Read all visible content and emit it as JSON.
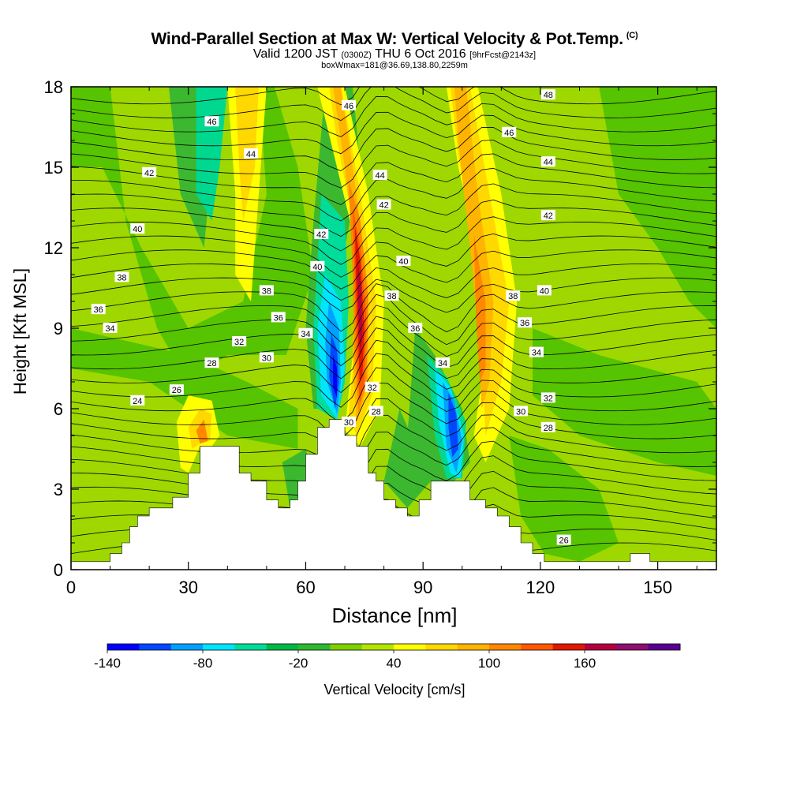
{
  "titles": {
    "main": "Wind-Parallel Section at Max W: Vertical Velocity & Pot.Temp.",
    "copyright": "(C)",
    "valid_pre": "Valid 1200 JST",
    "valid_utc": "(0300Z)",
    "valid_post": "THU 6 Oct 2016",
    "forecast": "[9hrFcst@2143z]",
    "box": "boxWmax=181@36.69,138.80,2259m"
  },
  "chart_data": {
    "type": "heatmap",
    "title": "Wind-Parallel Section at Max W: Vertical Velocity & Pot.Temp.",
    "xlabel": "Distance [nm]",
    "ylabel": "Height [Kft MSL]",
    "xlim": [
      0,
      165
    ],
    "ylim": [
      0,
      18
    ],
    "x_ticks": [
      0,
      30,
      60,
      90,
      120,
      150
    ],
    "y_ticks": [
      0,
      3,
      6,
      9,
      12,
      15,
      18
    ],
    "grid": false,
    "colorbar": {
      "label": "Vertical Velocity [cm/s]",
      "tick_labels": [
        "-140",
        "-80",
        "-20",
        "40",
        "100",
        "160"
      ],
      "colors": [
        "#0000ff",
        "#0048ff",
        "#00a0ff",
        "#00e4ff",
        "#00dc9a",
        "#00b848",
        "#30b830",
        "#7ed000",
        "#b4e400",
        "#ffff00",
        "#ffd800",
        "#ffb400",
        "#ff8800",
        "#ff5800",
        "#e01800",
        "#b40040",
        "#8c1070",
        "#5a0090"
      ]
    },
    "velocity_features": [
      {
        "x": 73,
        "y": 11.0,
        "w": 160,
        "kind": "updraft-core"
      },
      {
        "x": 68,
        "y": 7.5,
        "w": -130,
        "kind": "downdraft-core"
      },
      {
        "x": 98,
        "y": 5.8,
        "w": -110,
        "kind": "downdraft-core"
      },
      {
        "x": 104,
        "y": 9.5,
        "w": 70,
        "kind": "updraft"
      },
      {
        "x": 46,
        "y": 15.5,
        "w": 50,
        "kind": "updraft"
      },
      {
        "x": 100,
        "y": 15.0,
        "w": 60,
        "kind": "updraft"
      },
      {
        "x": 33,
        "y": 5.0,
        "w": 60,
        "kind": "updraft"
      },
      {
        "x": 34,
        "y": 16.0,
        "w": -60,
        "kind": "downdraft"
      }
    ],
    "theta_labels": [
      {
        "text": "24",
        "x": 17,
        "y": 6.3
      },
      {
        "text": "26",
        "x": 27,
        "y": 6.7
      },
      {
        "text": "28",
        "x": 36,
        "y": 7.7
      },
      {
        "text": "30",
        "x": 50,
        "y": 7.9
      },
      {
        "text": "32",
        "x": 43,
        "y": 8.5
      },
      {
        "text": "34",
        "x": 10,
        "y": 9.0
      },
      {
        "text": "34",
        "x": 60,
        "y": 8.8
      },
      {
        "text": "36",
        "x": 7,
        "y": 9.7
      },
      {
        "text": "36",
        "x": 53,
        "y": 9.4
      },
      {
        "text": "38",
        "x": 13,
        "y": 10.9
      },
      {
        "text": "38",
        "x": 50,
        "y": 10.4
      },
      {
        "text": "40",
        "x": 17,
        "y": 12.7
      },
      {
        "text": "40",
        "x": 63,
        "y": 11.3
      },
      {
        "text": "42",
        "x": 20,
        "y": 14.8
      },
      {
        "text": "42",
        "x": 64,
        "y": 12.5
      },
      {
        "text": "44",
        "x": 46,
        "y": 15.5
      },
      {
        "text": "46",
        "x": 36,
        "y": 16.7
      },
      {
        "text": "46",
        "x": 71,
        "y": 17.3
      },
      {
        "text": "44",
        "x": 79,
        "y": 14.7
      },
      {
        "text": "42",
        "x": 80,
        "y": 13.6
      },
      {
        "text": "40",
        "x": 85,
        "y": 11.5
      },
      {
        "text": "38",
        "x": 82,
        "y": 10.2
      },
      {
        "text": "36",
        "x": 88,
        "y": 9.0
      },
      {
        "text": "34",
        "x": 95,
        "y": 7.7
      },
      {
        "text": "32",
        "x": 77,
        "y": 6.8
      },
      {
        "text": "30",
        "x": 71,
        "y": 5.5
      },
      {
        "text": "28",
        "x": 78,
        "y": 5.9
      },
      {
        "text": "48",
        "x": 122,
        "y": 17.7
      },
      {
        "text": "46",
        "x": 112,
        "y": 16.3
      },
      {
        "text": "44",
        "x": 122,
        "y": 15.2
      },
      {
        "text": "42",
        "x": 122,
        "y": 13.2
      },
      {
        "text": "40",
        "x": 121,
        "y": 10.4
      },
      {
        "text": "38",
        "x": 113,
        "y": 10.2
      },
      {
        "text": "36",
        "x": 116,
        "y": 9.2
      },
      {
        "text": "34",
        "x": 119,
        "y": 8.1
      },
      {
        "text": "32",
        "x": 122,
        "y": 6.4
      },
      {
        "text": "30",
        "x": 115,
        "y": 5.9
      },
      {
        "text": "28",
        "x": 122,
        "y": 5.3
      },
      {
        "text": "26",
        "x": 126,
        "y": 1.1
      }
    ],
    "terrain": [
      [
        0,
        0.3
      ],
      [
        10,
        0.3
      ],
      [
        10,
        0.6
      ],
      [
        13,
        0.6
      ],
      [
        13,
        1.0
      ],
      [
        15,
        1.0
      ],
      [
        15,
        1.6
      ],
      [
        17,
        1.6
      ],
      [
        17,
        2.0
      ],
      [
        20,
        2.0
      ],
      [
        20,
        2.3
      ],
      [
        26,
        2.3
      ],
      [
        26,
        2.7
      ],
      [
        30,
        2.7
      ],
      [
        30,
        3.6
      ],
      [
        33,
        3.6
      ],
      [
        33,
        4.6
      ],
      [
        43,
        4.6
      ],
      [
        43,
        3.6
      ],
      [
        46,
        3.6
      ],
      [
        46,
        3.3
      ],
      [
        50,
        3.3
      ],
      [
        50,
        2.6
      ],
      [
        53,
        2.6
      ],
      [
        53,
        2.3
      ],
      [
        56,
        2.3
      ],
      [
        56,
        2.6
      ],
      [
        58,
        2.6
      ],
      [
        58,
        3.3
      ],
      [
        60,
        3.3
      ],
      [
        60,
        4.3
      ],
      [
        63,
        4.3
      ],
      [
        63,
        5.3
      ],
      [
        66,
        5.3
      ],
      [
        66,
        5.6
      ],
      [
        70,
        5.6
      ],
      [
        70,
        5.0
      ],
      [
        73,
        5.0
      ],
      [
        73,
        4.6
      ],
      [
        76,
        4.6
      ],
      [
        76,
        3.6
      ],
      [
        78,
        3.6
      ],
      [
        78,
        3.3
      ],
      [
        80,
        3.3
      ],
      [
        80,
        2.6
      ],
      [
        83,
        2.6
      ],
      [
        83,
        2.3
      ],
      [
        86,
        2.3
      ],
      [
        86,
        2.0
      ],
      [
        89,
        2.0
      ],
      [
        89,
        2.6
      ],
      [
        92,
        2.6
      ],
      [
        92,
        3.3
      ],
      [
        102,
        3.3
      ],
      [
        102,
        2.6
      ],
      [
        106,
        2.6
      ],
      [
        106,
        2.3
      ],
      [
        109,
        2.3
      ],
      [
        109,
        2.0
      ],
      [
        112,
        2.0
      ],
      [
        112,
        1.6
      ],
      [
        115,
        1.6
      ],
      [
        115,
        1.0
      ],
      [
        118,
        1.0
      ],
      [
        118,
        0.6
      ],
      [
        121,
        0.6
      ],
      [
        121,
        0.3
      ],
      [
        143,
        0.3
      ],
      [
        143,
        0.6
      ],
      [
        148,
        0.6
      ],
      [
        148,
        0.3
      ],
      [
        165,
        0.3
      ]
    ]
  }
}
